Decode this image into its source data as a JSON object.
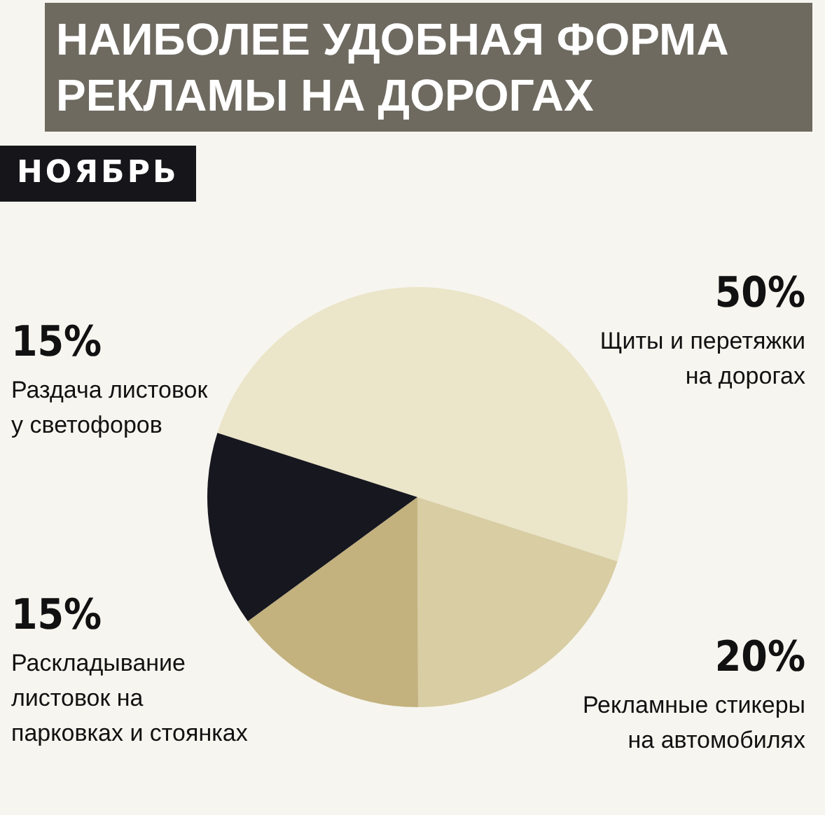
{
  "chart_data": {
    "type": "pie",
    "title": "НАИБОЛЕЕ УДОБНАЯ ФОРМА РЕКЛАМЫ НА ДОРОГАХ",
    "subtitle": "НОЯБРЬ",
    "categories": [
      "Щиты и перетяжки на дорогах",
      "Рекламные стикеры на автомобилях",
      "Раскладывание листовок на парковках и стоянках",
      "Раздача листовок у светофоров"
    ],
    "values": [
      50,
      20,
      15,
      15
    ],
    "value_labels": [
      "50%",
      "20%",
      "15%",
      "15%"
    ],
    "colors": [
      "#ebe5c9",
      "#d8cda3",
      "#c3b27e",
      "#17171f"
    ]
  }
}
